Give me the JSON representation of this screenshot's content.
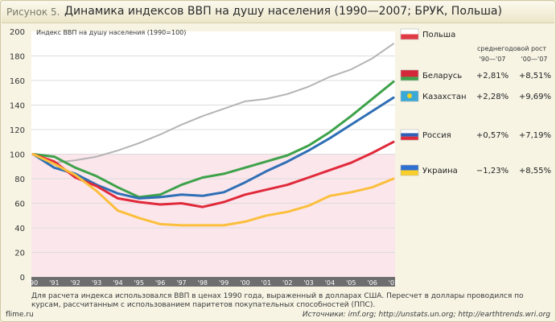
{
  "header": {
    "prefix": "Рисунок 5.",
    "title": "Динамика индексов ВВП на душу населения (1990—2007;  БРУК, Польша)"
  },
  "colors": {
    "panel": "#ffffff",
    "band": "#fbe6ec",
    "grid": "#d8d8d8",
    "text": "#333333"
  },
  "chart_data": {
    "type": "line",
    "title": "Динамика индексов ВВП на душу населения (1990—2007;  БРУК, Польша)",
    "ylabel": "Индекс ВВП на душу населения (1990=100)",
    "xlabel": "",
    "ylim": [
      0,
      200
    ],
    "yticks": [
      0,
      20,
      40,
      60,
      80,
      100,
      120,
      140,
      160,
      180,
      200
    ],
    "band_max": 100,
    "x": [
      "'90",
      "'91",
      "'92",
      "'93",
      "'94",
      "'95",
      "'96",
      "'97",
      "'98",
      "'99",
      "'00",
      "'01",
      "'02",
      "'03",
      "'04",
      "'05",
      "'06",
      "'07"
    ],
    "series": [
      {
        "name": "Польша",
        "color": "#b4b4b4",
        "values": [
          100,
          93,
          95,
          98,
          103,
          109,
          116,
          124,
          131,
          137,
          143,
          145,
          149,
          155,
          163,
          169,
          178,
          190
        ]
      },
      {
        "name": "Беларусь",
        "color": "#3ea24a",
        "values": [
          100,
          98,
          89,
          82,
          73,
          65,
          67,
          75,
          81,
          84,
          89,
          94,
          99,
          107,
          118,
          131,
          145,
          159
        ]
      },
      {
        "name": "Казахстан",
        "color": "#2f6fb5",
        "values": [
          100,
          89,
          84,
          75,
          68,
          64,
          65,
          67,
          66,
          69,
          77,
          86,
          94,
          103,
          113,
          124,
          135,
          146
        ]
      },
      {
        "name": "Россия",
        "color": "#e02a3a",
        "values": [
          100,
          94,
          81,
          74,
          64,
          61,
          59,
          60,
          57,
          61,
          67,
          71,
          75,
          81,
          87,
          93,
          101,
          110
        ]
      },
      {
        "name": "Украина",
        "color": "#fbbf3c",
        "values": [
          100,
          92,
          83,
          70,
          54,
          48,
          43,
          42,
          42,
          42,
          45,
          50,
          53,
          58,
          66,
          69,
          73,
          80
        ]
      }
    ],
    "growth_header": "среднегодовой рост",
    "growth_periods": [
      "'90—'07",
      "'00—'07"
    ],
    "growth": [
      {
        "country": "Польша",
        "p1": "",
        "p2": ""
      },
      {
        "country": "Беларусь",
        "p1": "+2,81%",
        "p2": "+8,51%"
      },
      {
        "country": "Казахстан",
        "p1": "+2,28%",
        "p2": "+9,69%"
      },
      {
        "country": "Россия",
        "p1": "+0,57%",
        "p2": "+7,19%"
      },
      {
        "country": "Украина",
        "p1": "−1,23%",
        "p2": "+8,55%"
      }
    ]
  },
  "footer": {
    "note": "Для расчета индекса использовался  ВВП в ценах 1990 года, выраженный в долларах США. Пересчет в доллары проводился  по курсам, рассчитанным с использованием  паритетов покупательных  способностей (ППС).",
    "site": "flime.ru",
    "sources_label": "Источники:",
    "sources": " imf.org; http://unstats.un.org; http://earthtrends.wri.org"
  }
}
